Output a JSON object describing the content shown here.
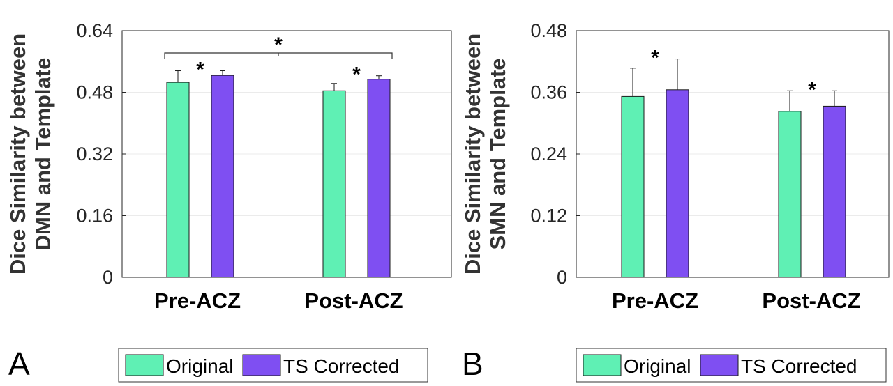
{
  "colors": {
    "original": "#5ff0b4",
    "ts_corrected": "#7f4ff2",
    "axis": "#262626",
    "grid": "#ebebeb"
  },
  "chart_data": [
    {
      "panel": "A",
      "type": "bar",
      "ylabel_line1": "Dice Similarity between",
      "ylabel_line2": "DMN and Template",
      "categories": [
        "Pre-ACZ",
        "Post-ACZ"
      ],
      "ylim": [
        0,
        0.64
      ],
      "yticks": [
        "0",
        "0.16",
        "0.32",
        "0.48",
        "0.64"
      ],
      "series": [
        {
          "name": "Original",
          "values": [
            0.506,
            0.484
          ],
          "errors": [
            0.03,
            0.019
          ]
        },
        {
          "name": "TS Corrected",
          "values": [
            0.524,
            0.514
          ],
          "errors": [
            0.012,
            0.009
          ]
        }
      ],
      "significance": [
        {
          "label": "*",
          "between": "series-within-Pre-ACZ"
        },
        {
          "label": "*",
          "between": "series-within-Post-ACZ"
        },
        {
          "label": "*",
          "between": "Pre-ACZ-vs-Post-ACZ"
        }
      ],
      "legend": {
        "placement": "bottom-right",
        "items": [
          "Original",
          "TS Corrected"
        ]
      },
      "grid": true
    },
    {
      "panel": "B",
      "type": "bar",
      "ylabel_line1": "Dice Similarity between",
      "ylabel_line2": "SMN and Template",
      "categories": [
        "Pre-ACZ",
        "Post-ACZ"
      ],
      "ylim": [
        0,
        0.48
      ],
      "yticks": [
        "0",
        "0.12",
        "0.24",
        "0.36",
        "0.48"
      ],
      "series": [
        {
          "name": "Original",
          "values": [
            0.352,
            0.323
          ],
          "errors": [
            0.055,
            0.04
          ]
        },
        {
          "name": "TS Corrected",
          "values": [
            0.365,
            0.333
          ],
          "errors": [
            0.06,
            0.03
          ]
        }
      ],
      "significance": [
        {
          "label": "*",
          "between": "series-within-Pre-ACZ"
        },
        {
          "label": "*",
          "between": "series-within-Post-ACZ"
        }
      ],
      "legend": {
        "placement": "bottom-right",
        "items": [
          "Original",
          "TS Corrected"
        ]
      },
      "grid": true
    }
  ]
}
